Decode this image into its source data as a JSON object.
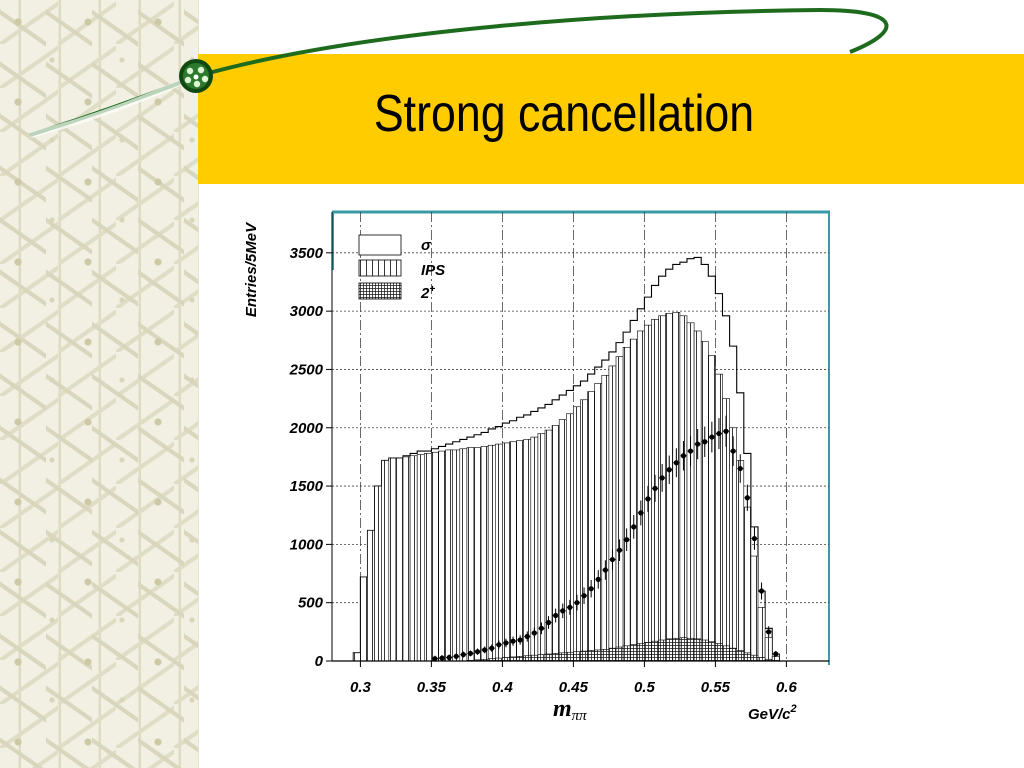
{
  "slide": {
    "title": "Strong cancellation",
    "colors": {
      "band": "#ffcc00",
      "swoosh": "#1e6b1e",
      "frame": "#3a9aa8"
    }
  },
  "chart_data": {
    "type": "bar",
    "xlabel": "m",
    "xlabel_subscript": "ππ",
    "xunit": "GeV/c",
    "xunit_superscript": "2",
    "ylabel": "Entries/5MeV",
    "xlim": [
      0.28,
      0.63
    ],
    "ylim": [
      0,
      3850
    ],
    "xticks": [
      0.3,
      0.35,
      0.4,
      0.45,
      0.5,
      0.55,
      0.6
    ],
    "xtick_labels": [
      "0.3",
      "0.35",
      "0.4",
      "0.45",
      "0.5",
      "0.55",
      "0.6"
    ],
    "yticks": [
      0,
      500,
      1000,
      1500,
      2000,
      2500,
      3000,
      3500
    ],
    "ytick_labels": [
      "0",
      "500",
      "1000",
      "1500",
      "2000",
      "2500",
      "3000",
      "3500"
    ],
    "grid": true,
    "legend_position": "top-left",
    "legend": [
      "σ",
      "IPS",
      "2+"
    ],
    "bin_edges_start": 0.295,
    "bin_width": 0.005,
    "series": [
      {
        "name": "σ",
        "style": "outline-histogram",
        "values": [
          70,
          720,
          1120,
          1500,
          1720,
          1740,
          1740,
          1760,
          1780,
          1800,
          1800,
          1820,
          1840,
          1860,
          1880,
          1900,
          1920,
          1940,
          1960,
          1990,
          2010,
          2040,
          2060,
          2090,
          2110,
          2140,
          2170,
          2200,
          2240,
          2280,
          2320,
          2360,
          2400,
          2460,
          2520,
          2580,
          2650,
          2730,
          2820,
          2920,
          3020,
          3120,
          3220,
          3300,
          3360,
          3400,
          3420,
          3450,
          3460,
          3400,
          3300,
          3150,
          2960,
          2700,
          2300,
          1780,
          1150,
          600,
          280,
          60
        ]
      },
      {
        "name": "IPS",
        "style": "vertical-hatched-histogram",
        "values": [
          70,
          720,
          1120,
          1500,
          1720,
          1740,
          1740,
          1750,
          1760,
          1770,
          1780,
          1790,
          1800,
          1810,
          1810,
          1820,
          1830,
          1830,
          1840,
          1850,
          1860,
          1870,
          1880,
          1890,
          1900,
          1920,
          1950,
          1980,
          2020,
          2070,
          2120,
          2180,
          2240,
          2310,
          2380,
          2450,
          2530,
          2610,
          2690,
          2760,
          2830,
          2880,
          2930,
          2960,
          2980,
          2990,
          2960,
          2900,
          2830,
          2740,
          2620,
          2460,
          2250,
          2000,
          1720,
          1320,
          900,
          460,
          200,
          40
        ]
      },
      {
        "name": "2+",
        "style": "cross-hatched-histogram",
        "values": [
          0,
          0,
          0,
          0,
          0,
          0,
          0,
          0,
          0,
          0,
          0,
          0,
          0,
          0,
          0,
          0,
          5,
          10,
          15,
          20,
          25,
          30,
          35,
          40,
          45,
          50,
          55,
          60,
          65,
          70,
          75,
          80,
          85,
          90,
          95,
          100,
          110,
          120,
          130,
          140,
          150,
          160,
          170,
          180,
          190,
          195,
          200,
          195,
          190,
          180,
          165,
          150,
          130,
          110,
          90,
          70,
          50,
          30,
          15,
          5
        ]
      },
      {
        "name": "data",
        "style": "points-with-errors",
        "x": [
          0.4075,
          0.4125,
          0.4175,
          0.4225,
          0.4275,
          0.4325,
          0.4375,
          0.4425,
          0.4475,
          0.4525,
          0.4575,
          0.4625,
          0.4675,
          0.4725,
          0.4775,
          0.4825,
          0.4875,
          0.4925,
          0.4975,
          0.5025,
          0.5075,
          0.5125,
          0.5175,
          0.5225,
          0.5275,
          0.5325,
          0.5375,
          0.5425,
          0.5475,
          0.5525,
          0.5575,
          0.5625,
          0.5675,
          0.5725,
          0.5775,
          0.5825,
          0.5875,
          0.5925,
          0.3525,
          0.3575,
          0.3625,
          0.3675,
          0.3725,
          0.3775,
          0.3825,
          0.3875,
          0.3925,
          0.3975,
          0.4025
        ],
        "y": [
          170,
          180,
          210,
          240,
          280,
          330,
          390,
          430,
          460,
          500,
          560,
          620,
          700,
          780,
          870,
          950,
          1040,
          1150,
          1270,
          1390,
          1480,
          1570,
          1640,
          1700,
          1760,
          1800,
          1860,
          1880,
          1920,
          1950,
          1970,
          1800,
          1650,
          1400,
          1050,
          600,
          250,
          60,
          20,
          25,
          30,
          40,
          55,
          65,
          80,
          95,
          110,
          140,
          155
        ]
      }
    ]
  }
}
